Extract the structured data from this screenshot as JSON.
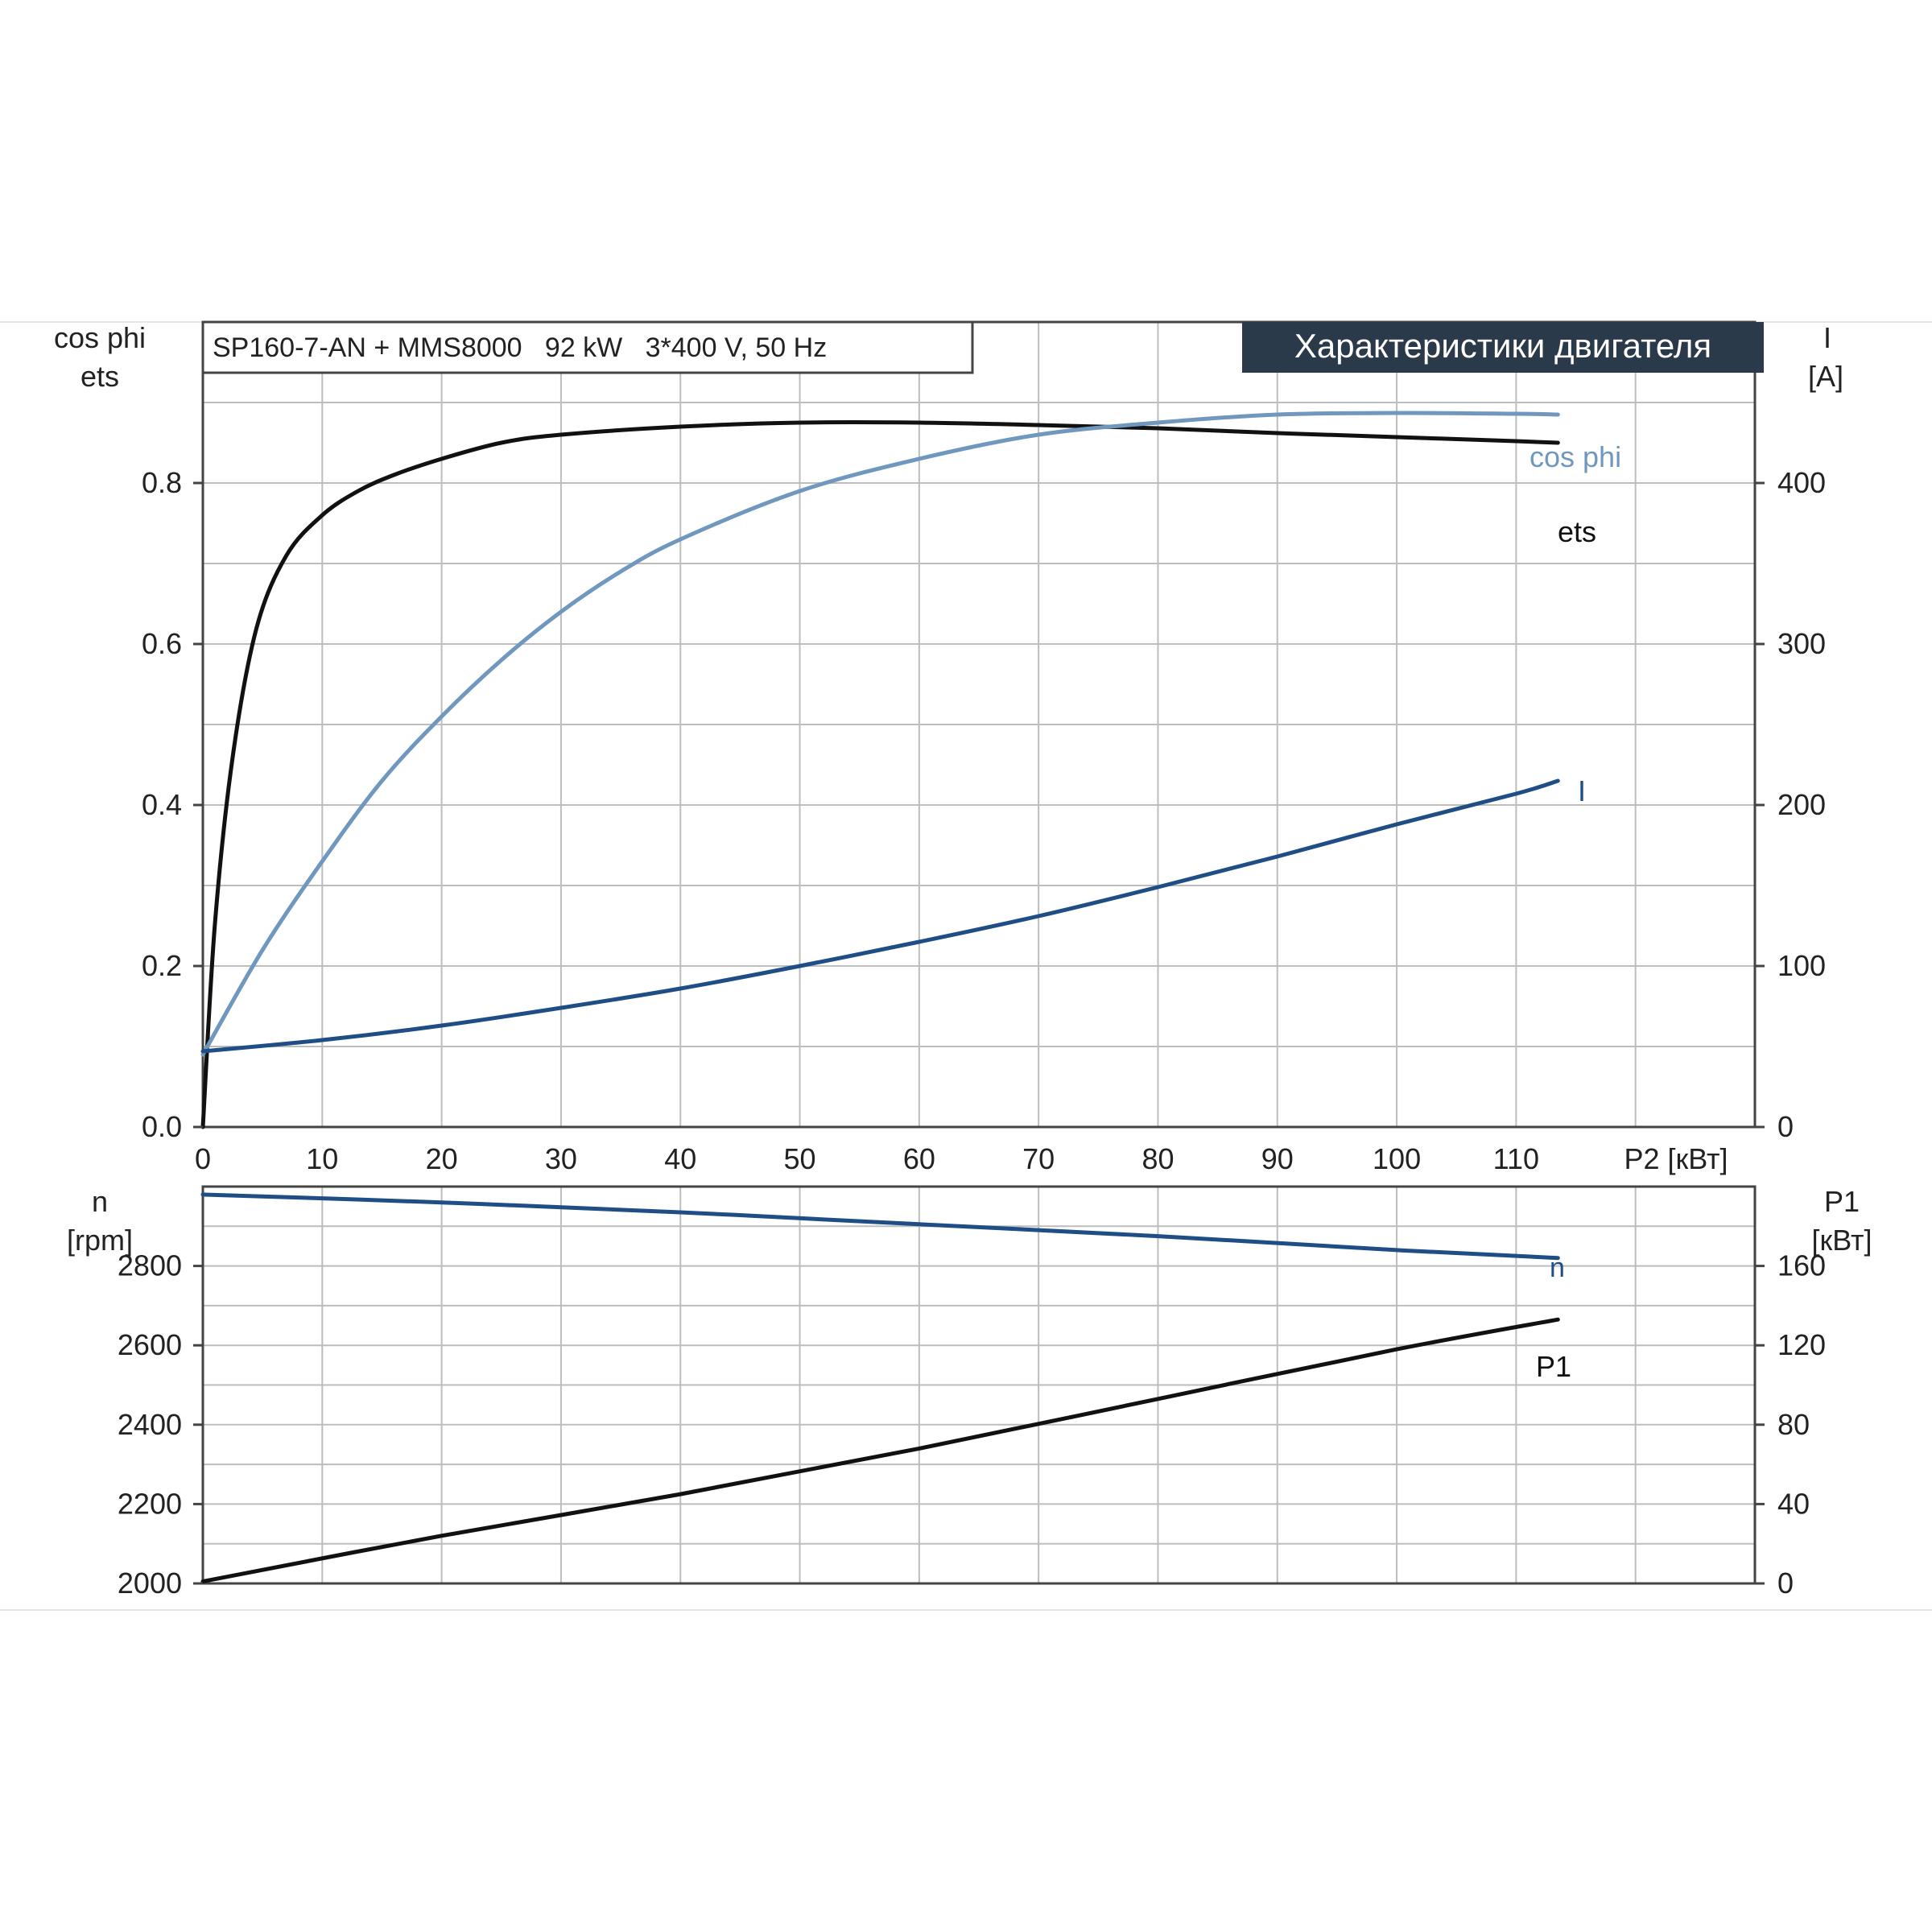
{
  "header": {
    "subtitle": "SP160-7-AN + MMS8000   92 kW   3*400 V, 50 Hz",
    "title": "Характеристики двигателя"
  },
  "colors": {
    "ets": "#111111",
    "cos_phi": "#7098bf",
    "I": "#1f4e87",
    "n": "#1f4e87",
    "P1": "#111111",
    "title_bg": "#2b3a4a",
    "title_text": "#ffffff"
  },
  "chart_data": [
    {
      "type": "line",
      "panel": "upper",
      "xlabel": "P2 [кВт]",
      "xlim": [
        0,
        130
      ],
      "x_ticks": [
        "0",
        "10",
        "20",
        "30",
        "40",
        "50",
        "60",
        "70",
        "80",
        "90",
        "100",
        "110"
      ],
      "ylabel_left": [
        "cos phi",
        "ets"
      ],
      "ylim_left": [
        0,
        1.0
      ],
      "y_ticks_left": [
        "0.0",
        "0.2",
        "0.4",
        "0.6",
        "0.8"
      ],
      "ylabel_right": [
        "I",
        "[A]"
      ],
      "ylim_right": [
        0,
        500
      ],
      "y_ticks_right": [
        "0",
        "100",
        "200",
        "300",
        "400"
      ],
      "grid": true,
      "series": [
        {
          "name": "ets",
          "axis": "left",
          "x": [
            0,
            1,
            2.5,
            4.5,
            7,
            10,
            13,
            16,
            20,
            25,
            30,
            40,
            50,
            60,
            70,
            80,
            90,
            100,
            110,
            113.5
          ],
          "y": [
            0.0,
            0.25,
            0.46,
            0.62,
            0.71,
            0.76,
            0.79,
            0.81,
            0.83,
            0.85,
            0.86,
            0.87,
            0.875,
            0.875,
            0.872,
            0.868,
            0.862,
            0.857,
            0.852,
            0.85
          ]
        },
        {
          "name": "cos phi",
          "axis": "left",
          "x": [
            0,
            5,
            10,
            15,
            20,
            25,
            30,
            35,
            40,
            50,
            60,
            70,
            80,
            90,
            100,
            110,
            113.5
          ],
          "y": [
            0.09,
            0.22,
            0.33,
            0.43,
            0.51,
            0.58,
            0.64,
            0.69,
            0.73,
            0.79,
            0.83,
            0.86,
            0.875,
            0.885,
            0.887,
            0.886,
            0.885
          ]
        },
        {
          "name": "I",
          "axis": "right",
          "x": [
            0,
            10,
            20,
            30,
            40,
            50,
            60,
            70,
            80,
            90,
            100,
            110,
            113.5
          ],
          "y": [
            47,
            54,
            63,
            74,
            86,
            100,
            115,
            131,
            149,
            168,
            188,
            207,
            215
          ]
        }
      ]
    },
    {
      "type": "line",
      "panel": "lower",
      "xlim": [
        0,
        130
      ],
      "ylabel_left": [
        "n",
        "[rpm]"
      ],
      "ylim_left": [
        2000,
        3000
      ],
      "y_ticks_left": [
        "2000",
        "2200",
        "2400",
        "2600",
        "2800"
      ],
      "ylabel_right": [
        "P1",
        "[кВт]"
      ],
      "ylim_right": [
        0,
        200
      ],
      "y_ticks_right": [
        "0",
        "40",
        "80",
        "120",
        "160"
      ],
      "grid": true,
      "series": [
        {
          "name": "n",
          "axis": "left",
          "x": [
            0,
            20,
            40,
            60,
            80,
            100,
            113.5
          ],
          "y": [
            2980,
            2960,
            2935,
            2905,
            2875,
            2840,
            2820
          ]
        },
        {
          "name": "P1",
          "axis": "right",
          "x": [
            0,
            20,
            40,
            60,
            80,
            100,
            113.5
          ],
          "y": [
            1,
            24,
            45,
            68,
            93,
            118,
            133
          ]
        }
      ]
    }
  ]
}
